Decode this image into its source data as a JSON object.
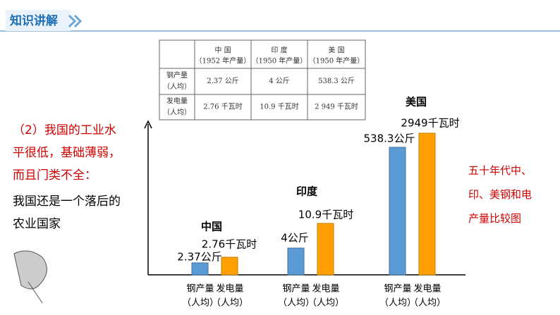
{
  "header": {
    "title": "知识讲解"
  },
  "table": {
    "columns": [
      {
        "name": "中 国",
        "note": "（1952 年产量）"
      },
      {
        "name": "印 度",
        "note": "（1950 年产量）"
      },
      {
        "name": "美 国",
        "note": "（1950 年产量）"
      }
    ],
    "rows": [
      {
        "label": [
          "钢产量",
          "（人均）"
        ],
        "cells": [
          "2.37 公斤",
          "4 公斤",
          "538.3 公斤"
        ]
      },
      {
        "label": [
          "发电量",
          "（人均）"
        ],
        "cells": [
          "2.76 千瓦时",
          "10.9 千瓦时",
          "2 949 千瓦时"
        ]
      }
    ]
  },
  "text": {
    "point": [
      "（2）我国的工业水",
      "平很低，基础薄弱，",
      "而且门类不全："
    ],
    "conclusion": [
      "我国还是一个落后的",
      "农业国家"
    ]
  },
  "figure": {
    "groups": [
      {
        "name": "中国",
        "labels": [
          "2.37公斤",
          "2.76千瓦时"
        ]
      },
      {
        "name": "印度",
        "labels": [
          "4公斤",
          "10.9千瓦时"
        ]
      },
      {
        "name": "美国",
        "labels": [
          "538.3公斤",
          "2949千瓦时"
        ]
      }
    ],
    "categories": [
      [
        "钢产量",
        "（人均）"
      ],
      [
        "发电量",
        "（人均）"
      ]
    ],
    "caption": [
      "五十年代中、",
      "印、美钢和电",
      "产量比较图"
    ]
  }
}
